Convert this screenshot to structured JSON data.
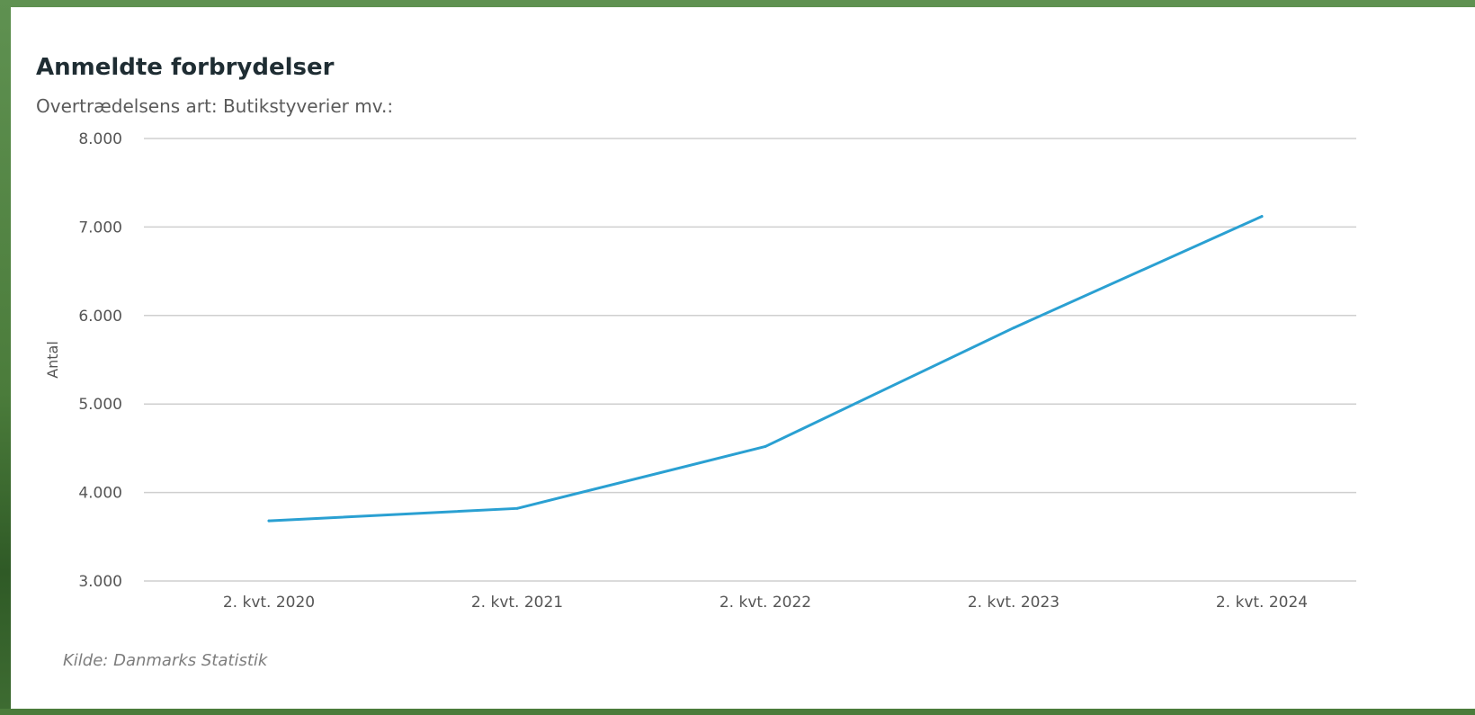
{
  "chart_data": {
    "type": "line",
    "title": "Anmeldte forbrydelser",
    "subtitle": "Overtrædelsens art: Butikstyverier mv.:",
    "source": "Kilde: Danmarks Statistik",
    "xlabel": "",
    "ylabel": "Antal",
    "categories": [
      "2. kvt. 2020",
      "2. kvt. 2021",
      "2. kvt. 2022",
      "2. kvt. 2023",
      "2. kvt. 2024"
    ],
    "series": [
      {
        "values": [
          3680,
          3820,
          4520,
          5860,
          7120
        ],
        "color": "#2aa0d2"
      }
    ],
    "ylim": [
      3000,
      8000
    ],
    "yticks": [
      3000,
      4000,
      5000,
      6000,
      7000,
      8000
    ],
    "ytick_labels": [
      "3.000",
      "4.000",
      "5.000",
      "6.000",
      "7.000",
      "8.000"
    ],
    "grid": true,
    "legend": "none"
  }
}
